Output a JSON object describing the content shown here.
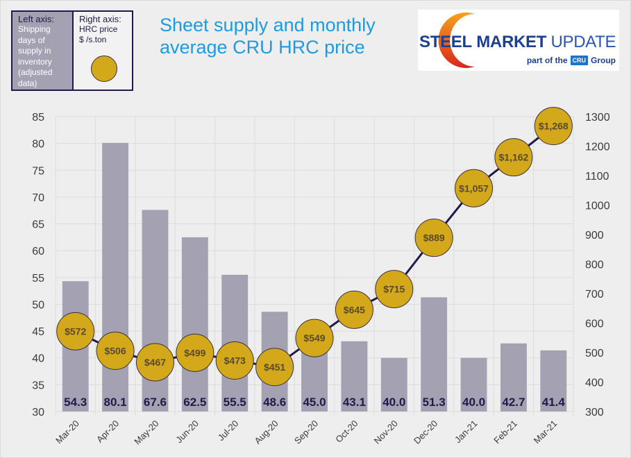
{
  "legend": {
    "left_heading": "Left axis:",
    "left_lines": [
      "Shipping",
      "days of",
      "supply in",
      "inventory",
      "(adjusted",
      "data)"
    ],
    "right_heading": "Right axis:",
    "right_lines": [
      "HRC  price",
      "$ /s.ton"
    ]
  },
  "logo": {
    "word1": "STEEL",
    "word2": "MARKET",
    "word3": "UPDATE",
    "sub_prefix": "part of the",
    "badge": "CRU",
    "sub_suffix": "Group"
  },
  "colors": {
    "bar": "#a4a1b3",
    "price_marker": "#d4a81b",
    "line": "#1f1a4a",
    "title": "#1e9be0"
  },
  "chart_data": {
    "type": "bar",
    "title": "Sheet supply and monthly average CRU HRC price",
    "title_lines": [
      "Sheet supply and monthly",
      "average CRU HRC price"
    ],
    "xlabel": "",
    "ylabel": "Shipping days of supply in inventory (adjusted data)",
    "y2label": "HRC price $ /s.ton",
    "categories": [
      "Mar-20",
      "Apr-20",
      "May-20",
      "Jun-20",
      "Jul-20",
      "Aug-20",
      "Sep-20",
      "Oct-20",
      "Nov-20",
      "Dec-20",
      "Jan-21",
      "Feb-21",
      "Mar-21"
    ],
    "ylim": [
      30,
      85
    ],
    "y_ticks": [
      30,
      35,
      40,
      45,
      50,
      55,
      60,
      65,
      70,
      75,
      80,
      85
    ],
    "y2lim": [
      300,
      1300
    ],
    "y2_ticks": [
      300,
      400,
      500,
      600,
      700,
      800,
      900,
      1000,
      1100,
      1200,
      1300
    ],
    "grid": true,
    "series": [
      {
        "name": "Shipping days of supply",
        "type": "bar",
        "axis": "left",
        "values": [
          54.3,
          80.1,
          67.6,
          62.5,
          55.5,
          48.6,
          45.0,
          43.1,
          40.0,
          51.3,
          40.0,
          42.7,
          41.4
        ],
        "labels": [
          "54.3",
          "80.1",
          "67.6",
          "62.5",
          "55.5",
          "48.6",
          "45.0",
          "43.1",
          "40.0",
          "51.3",
          "40.0",
          "42.7",
          "41.4"
        ]
      },
      {
        "name": "CRU HRC price",
        "type": "line",
        "axis": "right",
        "values": [
          572,
          506,
          467,
          499,
          473,
          451,
          549,
          645,
          715,
          889,
          1057,
          1162,
          1268
        ],
        "labels": [
          "$572",
          "$506",
          "$467",
          "$499",
          "$473",
          "$451",
          "$549",
          "$645",
          "$715",
          "$889",
          "$1,057",
          "$1,162",
          "$1,268"
        ]
      }
    ]
  }
}
